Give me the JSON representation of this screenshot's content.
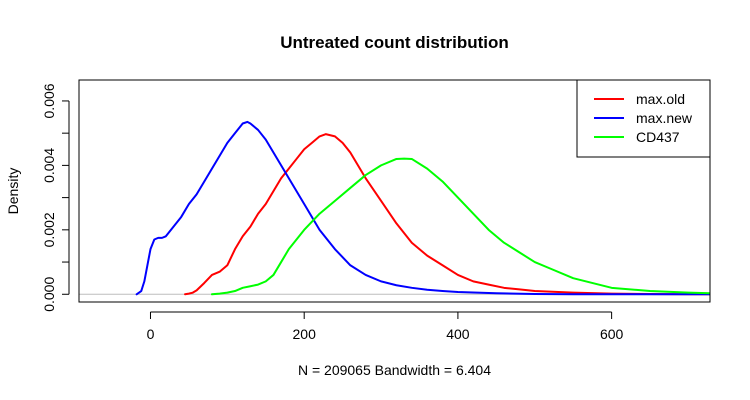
{
  "chart_data": {
    "type": "line",
    "title": "Untreated count distribution",
    "xlabel": "N = 209065   Bandwidth = 6.404",
    "ylabel": "Density",
    "xlim": [
      -93,
      728
    ],
    "ylim": [
      -0.00024,
      0.00665
    ],
    "x_ticks": [
      0,
      200,
      400,
      600
    ],
    "x_tick_labels": [
      "0",
      "200",
      "400",
      "600"
    ],
    "y_ticks": [
      0.0,
      0.001,
      0.002,
      0.003,
      0.004,
      0.005,
      0.006
    ],
    "y_tick_labels": [
      "0.000",
      "",
      "0.002",
      "",
      "0.004",
      "",
      "0.006"
    ],
    "grid": false,
    "baseline": 0,
    "baseline_color": "#bebebe",
    "legend_position": "top-right",
    "series": [
      {
        "name": "max.old",
        "color": "#ff0000",
        "x": [
          45,
          50,
          55,
          60,
          70,
          80,
          90,
          100,
          110,
          120,
          130,
          140,
          150,
          160,
          170,
          180,
          190,
          200,
          210,
          220,
          228,
          240,
          250,
          260,
          270,
          280,
          300,
          320,
          340,
          360,
          380,
          400,
          420,
          440,
          460,
          480,
          500,
          550,
          600,
          650,
          700,
          728
        ],
        "y": [
          0,
          2e-05,
          5e-05,
          0.00012,
          0.00035,
          0.0006,
          0.0007,
          0.0009,
          0.0014,
          0.0018,
          0.0021,
          0.0025,
          0.0028,
          0.0032,
          0.0036,
          0.0039,
          0.0042,
          0.0045,
          0.0047,
          0.0049,
          0.00497,
          0.0049,
          0.0047,
          0.0044,
          0.004,
          0.0036,
          0.0029,
          0.0022,
          0.0016,
          0.0012,
          0.0009,
          0.0006,
          0.0004,
          0.0003,
          0.0002,
          0.00015,
          0.0001,
          5e-05,
          2e-05,
          1e-05,
          0,
          0
        ]
      },
      {
        "name": "max.new",
        "color": "#0000ff",
        "x": [
          -18,
          -12,
          -8,
          -4,
          0,
          5,
          10,
          15,
          20,
          30,
          40,
          50,
          60,
          70,
          80,
          90,
          100,
          110,
          120,
          126,
          130,
          140,
          150,
          160,
          170,
          180,
          190,
          200,
          220,
          240,
          260,
          280,
          300,
          320,
          340,
          360,
          380,
          400,
          450,
          500,
          550,
          600,
          700,
          728
        ],
        "y": [
          0,
          0.0001,
          0.0004,
          0.0009,
          0.0014,
          0.0017,
          0.00175,
          0.00175,
          0.0018,
          0.0021,
          0.0024,
          0.0028,
          0.0031,
          0.0035,
          0.0039,
          0.0043,
          0.0047,
          0.005,
          0.0053,
          0.00535,
          0.0053,
          0.0051,
          0.0048,
          0.0044,
          0.004,
          0.0036,
          0.0032,
          0.0028,
          0.002,
          0.0014,
          0.0009,
          0.0006,
          0.0004,
          0.00028,
          0.0002,
          0.00014,
          0.0001,
          7e-05,
          3e-05,
          1e-05,
          0,
          0,
          0,
          0
        ]
      },
      {
        "name": "CD437",
        "color": "#00ff00",
        "x": [
          80,
          90,
          100,
          110,
          120,
          130,
          140,
          150,
          160,
          170,
          180,
          190,
          200,
          220,
          240,
          260,
          280,
          300,
          320,
          330,
          340,
          360,
          380,
          400,
          420,
          440,
          460,
          480,
          500,
          520,
          550,
          600,
          650,
          700,
          728
        ],
        "y": [
          0,
          2e-05,
          5e-05,
          0.0001,
          0.0002,
          0.00025,
          0.0003,
          0.0004,
          0.0006,
          0.001,
          0.0014,
          0.0017,
          0.002,
          0.0025,
          0.0029,
          0.0033,
          0.0037,
          0.004,
          0.0042,
          0.00421,
          0.0042,
          0.0039,
          0.0035,
          0.003,
          0.0025,
          0.002,
          0.0016,
          0.0013,
          0.001,
          0.0008,
          0.0005,
          0.0002,
          0.0001,
          5e-05,
          3e-05
        ]
      }
    ]
  }
}
